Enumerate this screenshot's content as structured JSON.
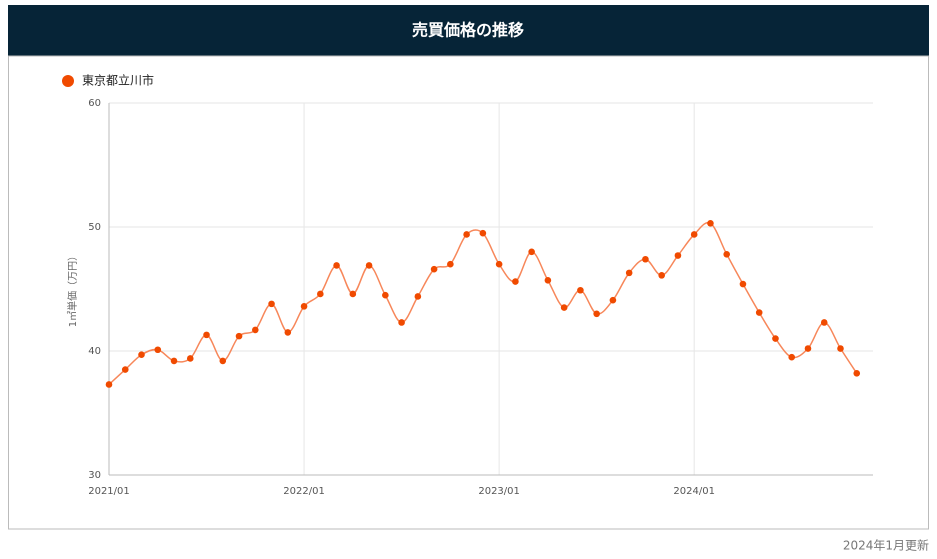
{
  "chart_data": {
    "type": "line",
    "title": "売買価格の推移",
    "y_label": "1㎡単価（万円）",
    "footer": "2024年1月更新",
    "categories": [
      "2021/01",
      null,
      null,
      null,
      null,
      null,
      null,
      null,
      null,
      null,
      null,
      null,
      "2022/01",
      null,
      null,
      null,
      null,
      null,
      null,
      null,
      null,
      null,
      null,
      null,
      "2023/01",
      null,
      null,
      null,
      null,
      null,
      null,
      null,
      null,
      null,
      null,
      null,
      "2024/01",
      null,
      null,
      null,
      null,
      null,
      null,
      null,
      null,
      null,
      null
    ],
    "series": [
      {
        "name": "東京都立川市",
        "color": "#f04a00",
        "line_color": "#f7875a",
        "values": [
          37.3,
          38.5,
          39.7,
          40.1,
          39.2,
          39.4,
          41.3,
          39.2,
          41.2,
          41.7,
          43.8,
          41.5,
          43.6,
          44.6,
          46.9,
          44.6,
          46.9,
          44.5,
          42.3,
          44.4,
          46.6,
          47.0,
          49.4,
          49.5,
          47.0,
          45.6,
          48.0,
          45.7,
          43.5,
          44.9,
          43.0,
          44.1,
          46.3,
          47.4,
          46.1,
          47.7,
          49.4,
          50.3,
          47.8,
          45.4,
          43.1,
          41.0,
          39.5,
          40.2,
          42.3,
          40.2,
          38.2
        ]
      }
    ],
    "ylim": [
      30,
      60
    ],
    "yticks": [
      30,
      40,
      50,
      60
    ],
    "grid": true
  }
}
